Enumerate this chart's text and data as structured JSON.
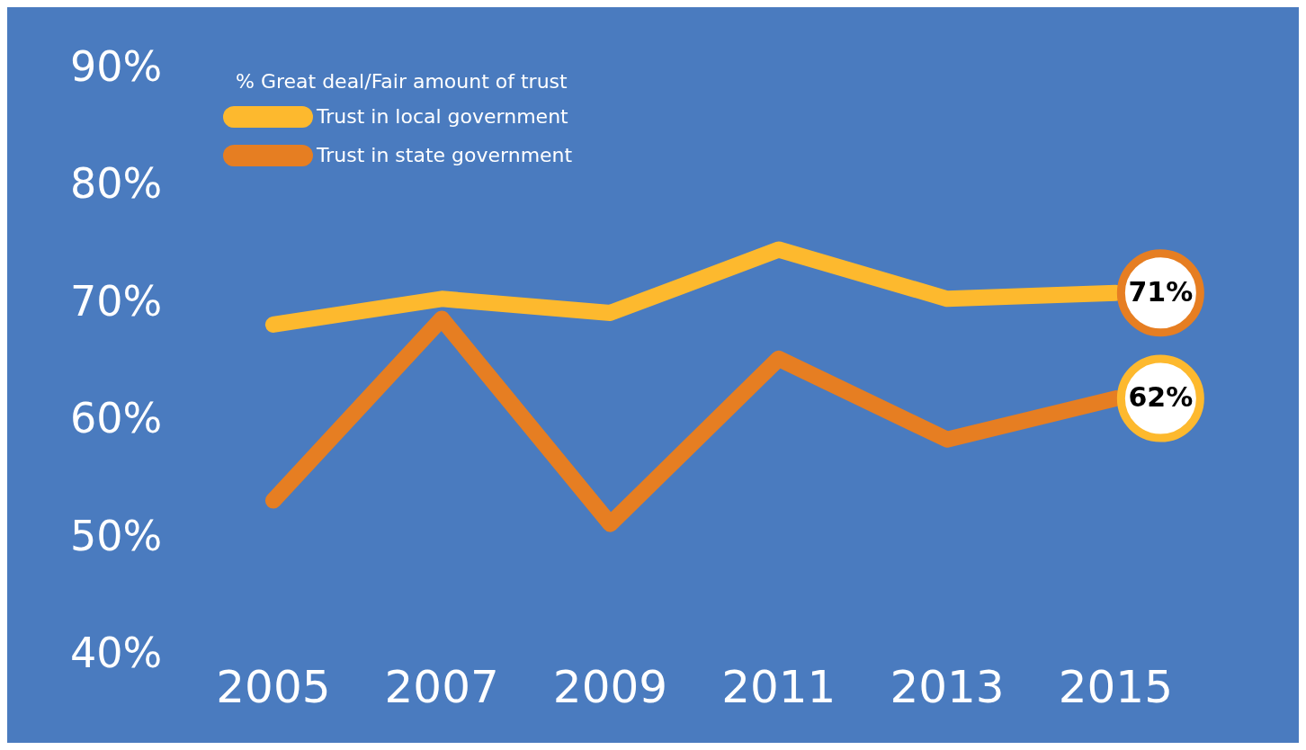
{
  "chart_data": {
    "type": "line",
    "legend_title": "% Great deal/Fair amount of trust",
    "categories": [
      "2005",
      "2007",
      "2009",
      "2011",
      "2013",
      "2015"
    ],
    "series": [
      {
        "name": "Trust in local government",
        "color": "#fdb92e",
        "values": [
          68.3,
          70.5,
          69.3,
          74.7,
          70.5,
          71
        ],
        "value_labels": [
          null,
          null,
          null,
          null,
          null,
          "71%"
        ]
      },
      {
        "name": "Trust in state government",
        "color": "#e67e22",
        "values": [
          53.3,
          68.8,
          51.3,
          65.4,
          58.5,
          62
        ],
        "value_labels": [
          null,
          null,
          null,
          null,
          null,
          "62%"
        ]
      }
    ],
    "ylim": [
      40,
      90
    ],
    "yticks": [
      {
        "value": 40,
        "label": "40%"
      },
      {
        "value": 50,
        "label": "50%"
      },
      {
        "value": 60,
        "label": "60%"
      },
      {
        "value": 70,
        "label": "70%"
      },
      {
        "value": 80,
        "label": "80%"
      },
      {
        "value": 90,
        "label": "90%"
      }
    ],
    "grid": false,
    "legend": "top left",
    "marker": "none",
    "line_style": "solid"
  }
}
